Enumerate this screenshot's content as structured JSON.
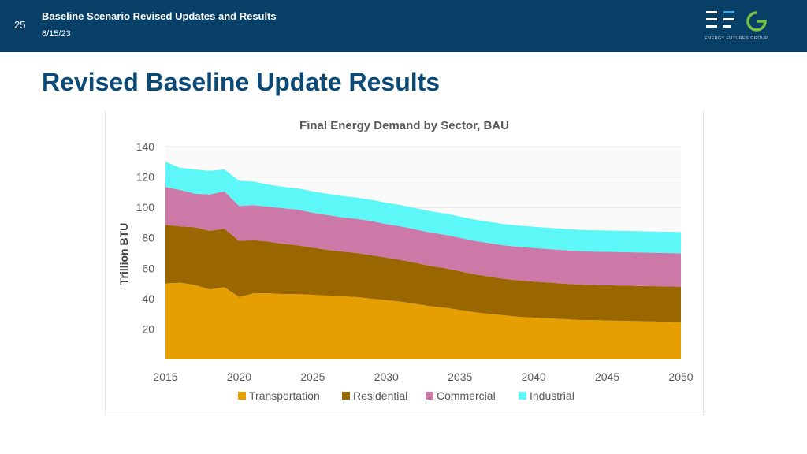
{
  "header": {
    "slide_number": "25",
    "title": "Baseline Scenario Revised Updates and Results",
    "date": "6/15/23",
    "logo_text": "ENERGY FUTURES GROUP",
    "logo_colors": {
      "bars": "#ffffff",
      "accent_bar": "#3fa9e0",
      "g": "#7bc143"
    }
  },
  "page": {
    "title": "Revised Baseline Update Results"
  },
  "chart_data": {
    "type": "area",
    "stacked": true,
    "title": "Final Energy Demand by Sector, BAU",
    "xlabel": "",
    "ylabel": "Trillion BTU",
    "xlim": [
      2015,
      2050
    ],
    "ylim": [
      0,
      140
    ],
    "x_ticks": [
      2015,
      2020,
      2025,
      2030,
      2035,
      2040,
      2045,
      2050
    ],
    "y_ticks": [
      20,
      40,
      60,
      80,
      100,
      120,
      140
    ],
    "grid": true,
    "legend_position": "bottom",
    "x": [
      2015,
      2016,
      2017,
      2018,
      2019,
      2020,
      2021,
      2022,
      2023,
      2024,
      2025,
      2026,
      2027,
      2028,
      2029,
      2030,
      2031,
      2032,
      2033,
      2034,
      2035,
      2036,
      2037,
      2038,
      2039,
      2040,
      2041,
      2042,
      2043,
      2044,
      2045,
      2046,
      2047,
      2048,
      2049,
      2050
    ],
    "series": [
      {
        "name": "Transportation",
        "color": "#e69f00",
        "values": [
          50,
          50.5,
          49,
          46,
          47.5,
          41,
          43.5,
          43.5,
          43,
          43,
          42.5,
          42,
          41.5,
          41,
          40,
          39,
          38,
          36.5,
          35,
          34,
          32.5,
          31,
          30,
          29,
          28,
          27.5,
          27,
          26.5,
          26,
          25.8,
          25.6,
          25.4,
          25.2,
          25,
          24.8,
          24.6
        ]
      },
      {
        "name": "Residential",
        "color": "#996600",
        "values": [
          38.5,
          37,
          38,
          38.5,
          38.5,
          37,
          35,
          34,
          33,
          32,
          31,
          30,
          29.5,
          29,
          28.5,
          28,
          27.5,
          27,
          26.5,
          26,
          25.5,
          25,
          24.5,
          24,
          24,
          23.8,
          23.6,
          23.4,
          23.3,
          23.2,
          23.2,
          23.2,
          23.2,
          23.2,
          23.2,
          23.2
        ]
      },
      {
        "name": "Commercial",
        "color": "#cc79a7",
        "values": [
          25,
          24,
          22,
          24,
          24.5,
          23,
          23,
          23,
          23.5,
          23.5,
          23,
          23,
          22.5,
          22.5,
          22.5,
          22,
          22,
          22,
          22,
          22,
          22,
          22,
          22,
          22,
          22,
          22,
          22,
          22,
          22,
          22,
          22,
          22,
          22,
          22,
          22,
          22
        ]
      },
      {
        "name": "Industrial",
        "color": "#5ef7f7",
        "values": [
          16.5,
          14.5,
          16,
          15.5,
          14.5,
          16.5,
          15.5,
          14.5,
          14,
          14,
          14,
          14,
          14,
          14,
          14,
          14,
          14,
          14,
          14,
          14,
          14,
          14,
          14,
          14,
          14,
          14,
          14,
          14,
          14,
          14,
          14,
          14,
          14,
          14,
          14,
          14
        ]
      }
    ]
  }
}
